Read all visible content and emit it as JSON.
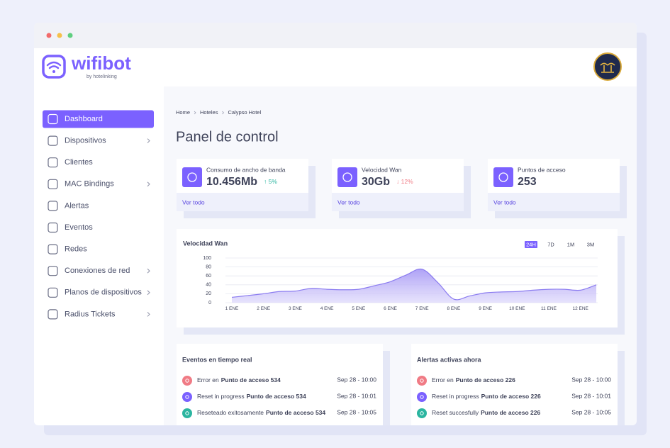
{
  "header": {
    "logo": "wifibot",
    "logo_sub": "by hotelinking"
  },
  "sidebar": {
    "items": [
      {
        "label": "Dashboard",
        "active": true
      },
      {
        "label": "Dispositivos",
        "submenu": true
      },
      {
        "label": "Clientes"
      },
      {
        "label": "MAC Bindings",
        "submenu": true
      },
      {
        "label": "Alertas"
      },
      {
        "label": "Eventos"
      },
      {
        "label": "Redes"
      },
      {
        "label": "Conexiones de red",
        "submenu": true
      },
      {
        "label": "Planos de dispositivos",
        "submenu": true
      },
      {
        "label": "Radius Tickets",
        "submenu": true
      }
    ]
  },
  "breadcrumb": [
    "Home",
    "Hoteles",
    "Calypso Hotel"
  ],
  "page_title": "Panel de control",
  "stats": [
    {
      "label": "Consumo de ancho de banda",
      "value": "10.456Mb",
      "change": "↑ 5%",
      "trend": "up",
      "link": "Ver todo"
    },
    {
      "label": "Velocidad Wan",
      "value": "30Gb",
      "change": "↓ 12%",
      "trend": "down",
      "link": "Ver todo"
    },
    {
      "label": "Puntos de acceso",
      "value": "253",
      "link": "Ver todo"
    }
  ],
  "chart_data": {
    "type": "area",
    "title": "Velocidad Wan",
    "ranges": [
      "24H",
      "7D",
      "1M",
      "3M"
    ],
    "active_range": 0,
    "categories": [
      "1 ENE",
      null,
      "2 ENE",
      null,
      "3 ENE",
      null,
      "4 ENE",
      null,
      "5 ENE",
      null,
      "6 ENE",
      null,
      "7 ENE",
      null,
      "8 ENE",
      null,
      "9 ENE",
      null,
      "10 ENE",
      null,
      "11 ENE",
      null,
      "12 ENE",
      null
    ],
    "values": [
      12,
      16,
      20,
      25,
      26,
      32,
      30,
      29,
      30,
      38,
      47,
      62,
      75,
      45,
      8,
      15,
      22,
      24,
      25,
      28,
      30,
      30,
      28,
      40
    ],
    "ylim": [
      0,
      100
    ],
    "yticks": [
      0,
      20,
      40,
      60,
      80,
      100
    ],
    "grid": true,
    "color": "#8b7cf0"
  },
  "panels": [
    {
      "title": "Eventos en tiempo real",
      "rows": [
        {
          "status": "error",
          "action": "Error en",
          "target": "Punto de acceso 534",
          "time": "Sep 28 - 10:00"
        },
        {
          "status": "progress",
          "action": "Reset in progress",
          "target": "Punto de acceso 534",
          "time": "Sep 28 - 10:01"
        },
        {
          "status": "success",
          "action": "Reseteado exitosamente",
          "target": "Punto de acceso 534",
          "time": "Sep 28 - 10:05"
        }
      ]
    },
    {
      "title": "Alertas activas ahora",
      "rows": [
        {
          "status": "error",
          "action": "Error en",
          "target": "Punto de acceso 226",
          "time": "Sep 28 - 10:00"
        },
        {
          "status": "progress",
          "action": "Reset in progress",
          "target": "Punto de acceso 226",
          "time": "Sep 28 - 10:01"
        },
        {
          "status": "success",
          "action": "Reset succesfully",
          "target": "Punto de acceso 226",
          "time": "Sep 28 - 10:05"
        }
      ]
    }
  ]
}
